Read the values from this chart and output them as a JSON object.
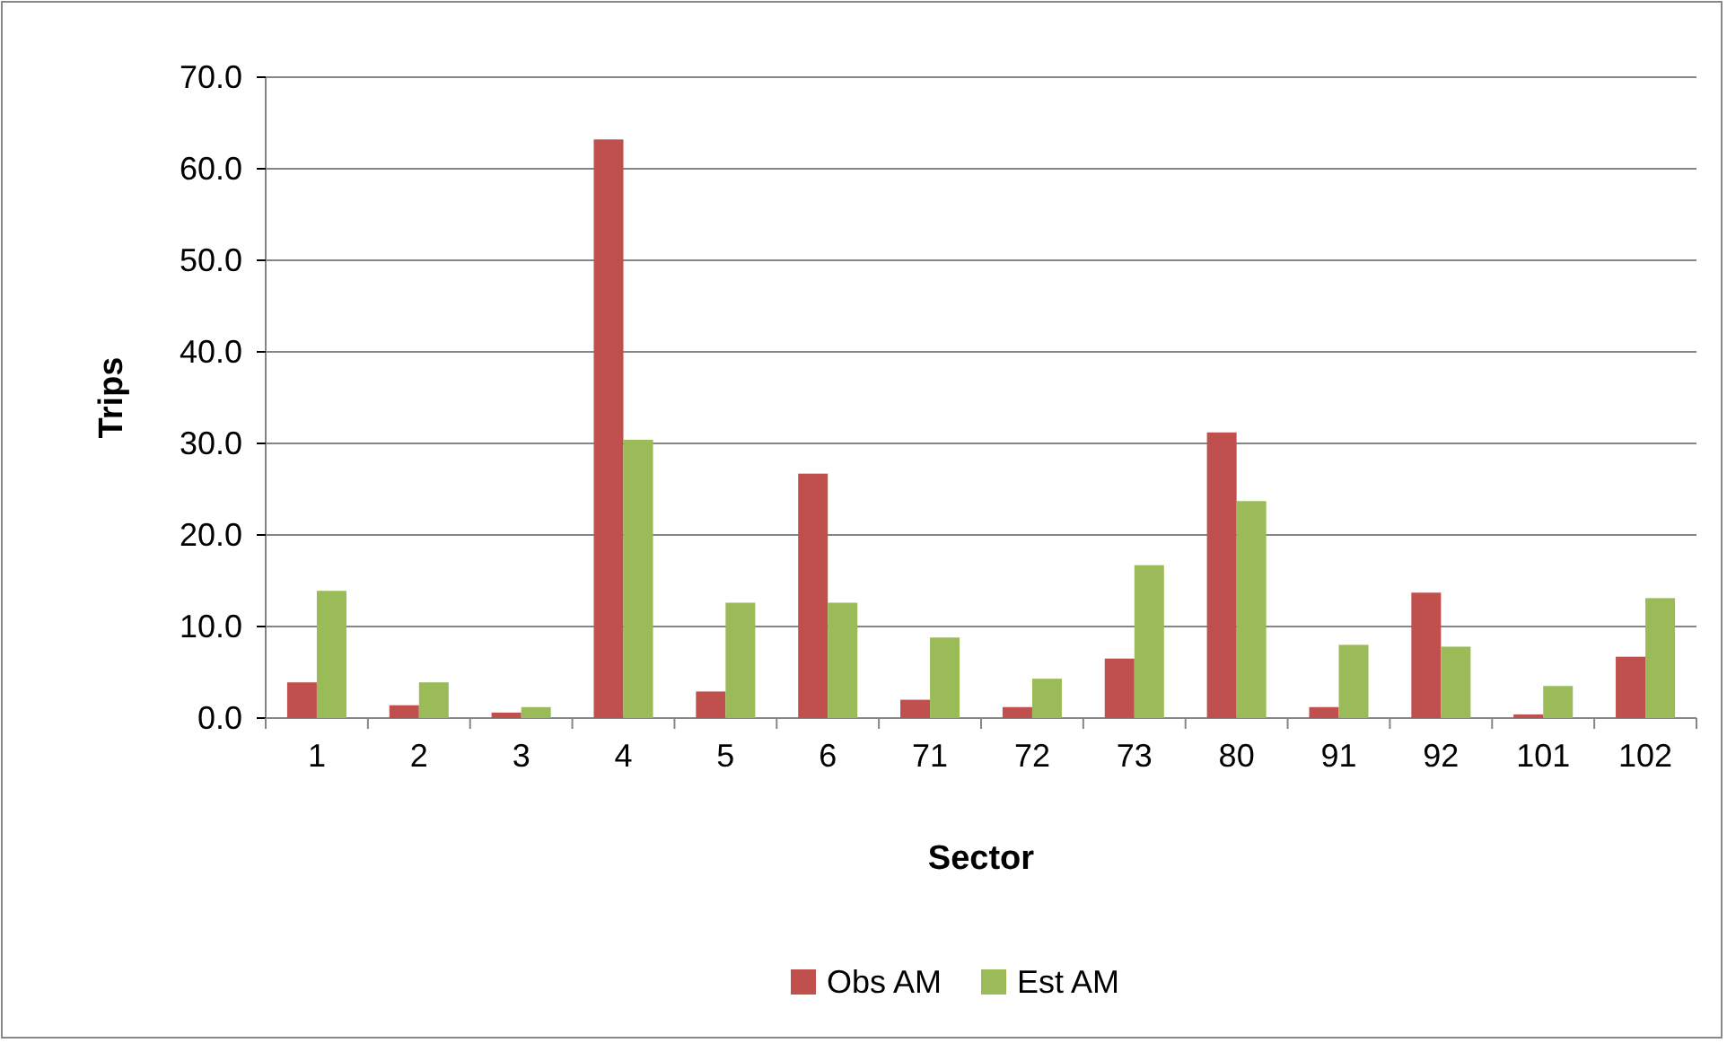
{
  "chart_data": {
    "type": "bar",
    "xlabel": "Sector",
    "ylabel": "Trips",
    "categories": [
      "1",
      "2",
      "3",
      "4",
      "5",
      "6",
      "71",
      "72",
      "73",
      "80",
      "91",
      "92",
      "101",
      "102"
    ],
    "series": [
      {
        "name": "Obs AM",
        "color": "#c0504d",
        "values": [
          3.9,
          1.4,
          0.6,
          63.2,
          2.9,
          26.7,
          2.0,
          1.2,
          6.5,
          31.2,
          1.2,
          13.7,
          0.4,
          6.7
        ]
      },
      {
        "name": "Est AM",
        "color": "#9bbb59",
        "values": [
          13.9,
          3.9,
          1.2,
          30.4,
          12.6,
          12.6,
          8.8,
          4.3,
          16.7,
          23.7,
          8.0,
          7.8,
          3.5,
          13.1
        ]
      }
    ],
    "ylim": [
      0,
      70
    ],
    "yticks": [
      {
        "value": 0,
        "label": "0.0"
      },
      {
        "value": 10,
        "label": "10.0"
      },
      {
        "value": 20,
        "label": "20.0"
      },
      {
        "value": 30,
        "label": "30.0"
      },
      {
        "value": 40,
        "label": "40.0"
      },
      {
        "value": 50,
        "label": "50.0"
      },
      {
        "value": 60,
        "label": "60.0"
      },
      {
        "value": 70,
        "label": "70.0"
      }
    ],
    "grid": "y",
    "legend": "bottom"
  }
}
